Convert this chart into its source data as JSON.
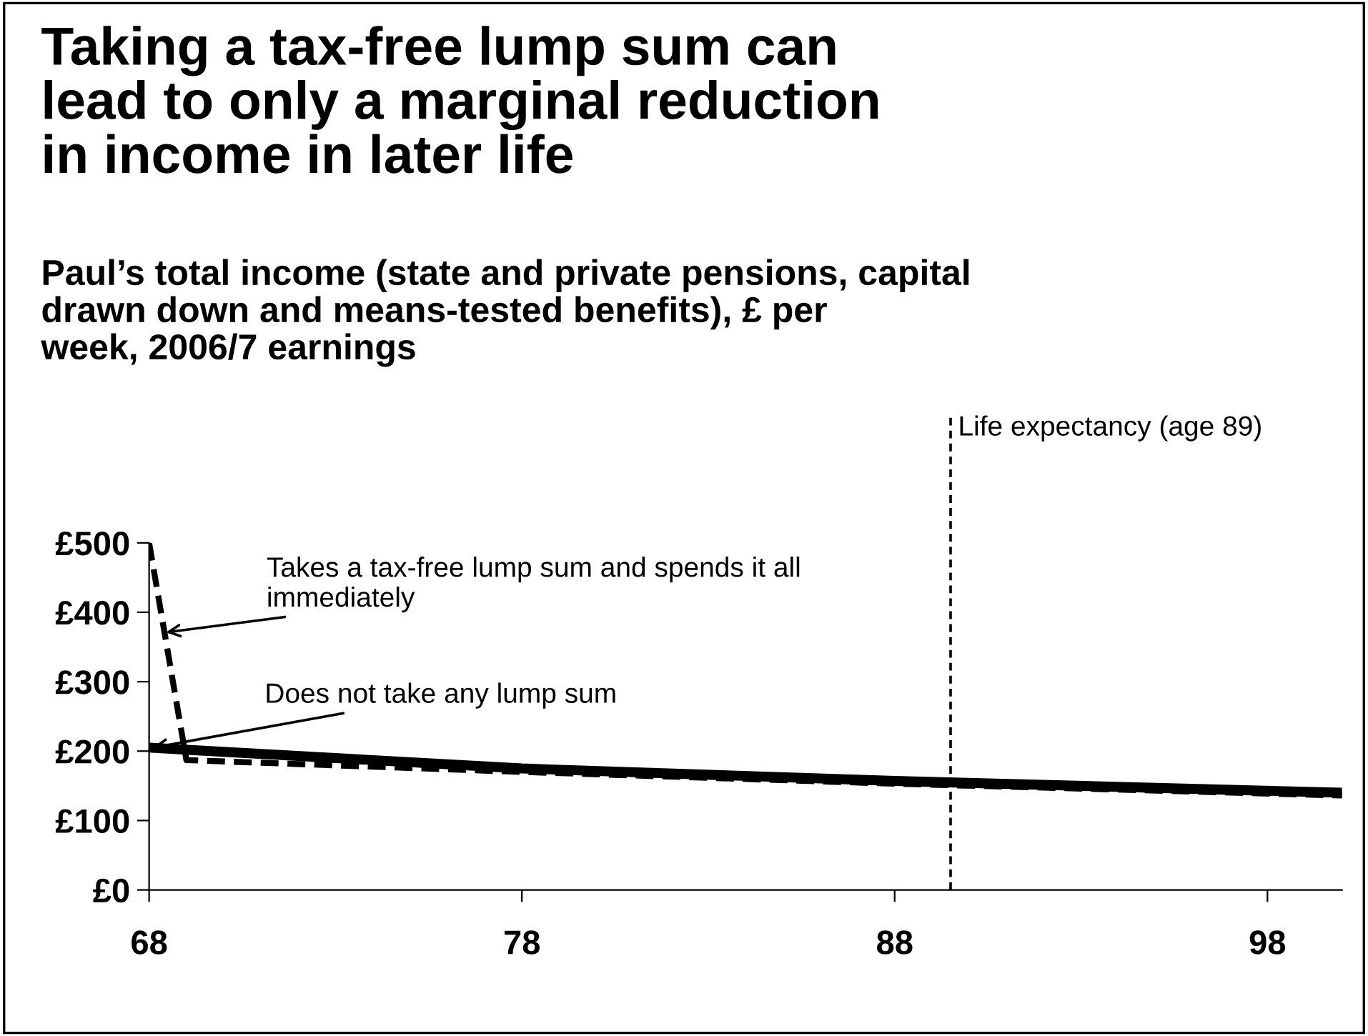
{
  "chart_data": {
    "type": "line",
    "title": "Taking a tax-free lump sum can\nlead to only a marginal reduction\nin income in later life",
    "subtitle": "Paul’s total income (state and private pensions, capital\ndrawn down and means-tested benefits), £ per\nweek, 2006/7 earnings",
    "series": [
      {
        "color": "#000000",
        "line_style": "solid",
        "x": [
          68,
          78,
          88,
          100
        ],
        "values": [
          205,
          175,
          157,
          140
        ]
      },
      {
        "color": "#000000",
        "line_style": "dashed",
        "x": [
          68,
          69,
          78,
          88,
          100
        ],
        "values": [
          500,
          187,
          170,
          153,
          136
        ]
      }
    ],
    "xlim": [
      68,
      100
    ],
    "xticks": [
      68,
      78,
      88,
      98
    ],
    "ylim": [
      0,
      500
    ],
    "yticks": [
      {
        "value": 0,
        "label": "£0"
      },
      {
        "value": 100,
        "label": "£100"
      },
      {
        "value": 200,
        "label": "£200"
      },
      {
        "value": 300,
        "label": "£300"
      },
      {
        "value": 400,
        "label": "£400"
      },
      {
        "value": 500,
        "label": "£500"
      }
    ],
    "ref_lines": [
      {
        "axis": "x",
        "value": 89.5,
        "label": "Life expectancy (age 89)",
        "color": "#000000",
        "line_style": "dotted"
      }
    ],
    "annotations": [
      {
        "text": "Takes a tax-free lump sum and spends it all\nimmediately",
        "x": 68.45,
        "y": 371
      },
      {
        "text": "Does not take any lump sum",
        "x": 68.1,
        "y": 205
      }
    ],
    "grid": false,
    "legend": false
  }
}
